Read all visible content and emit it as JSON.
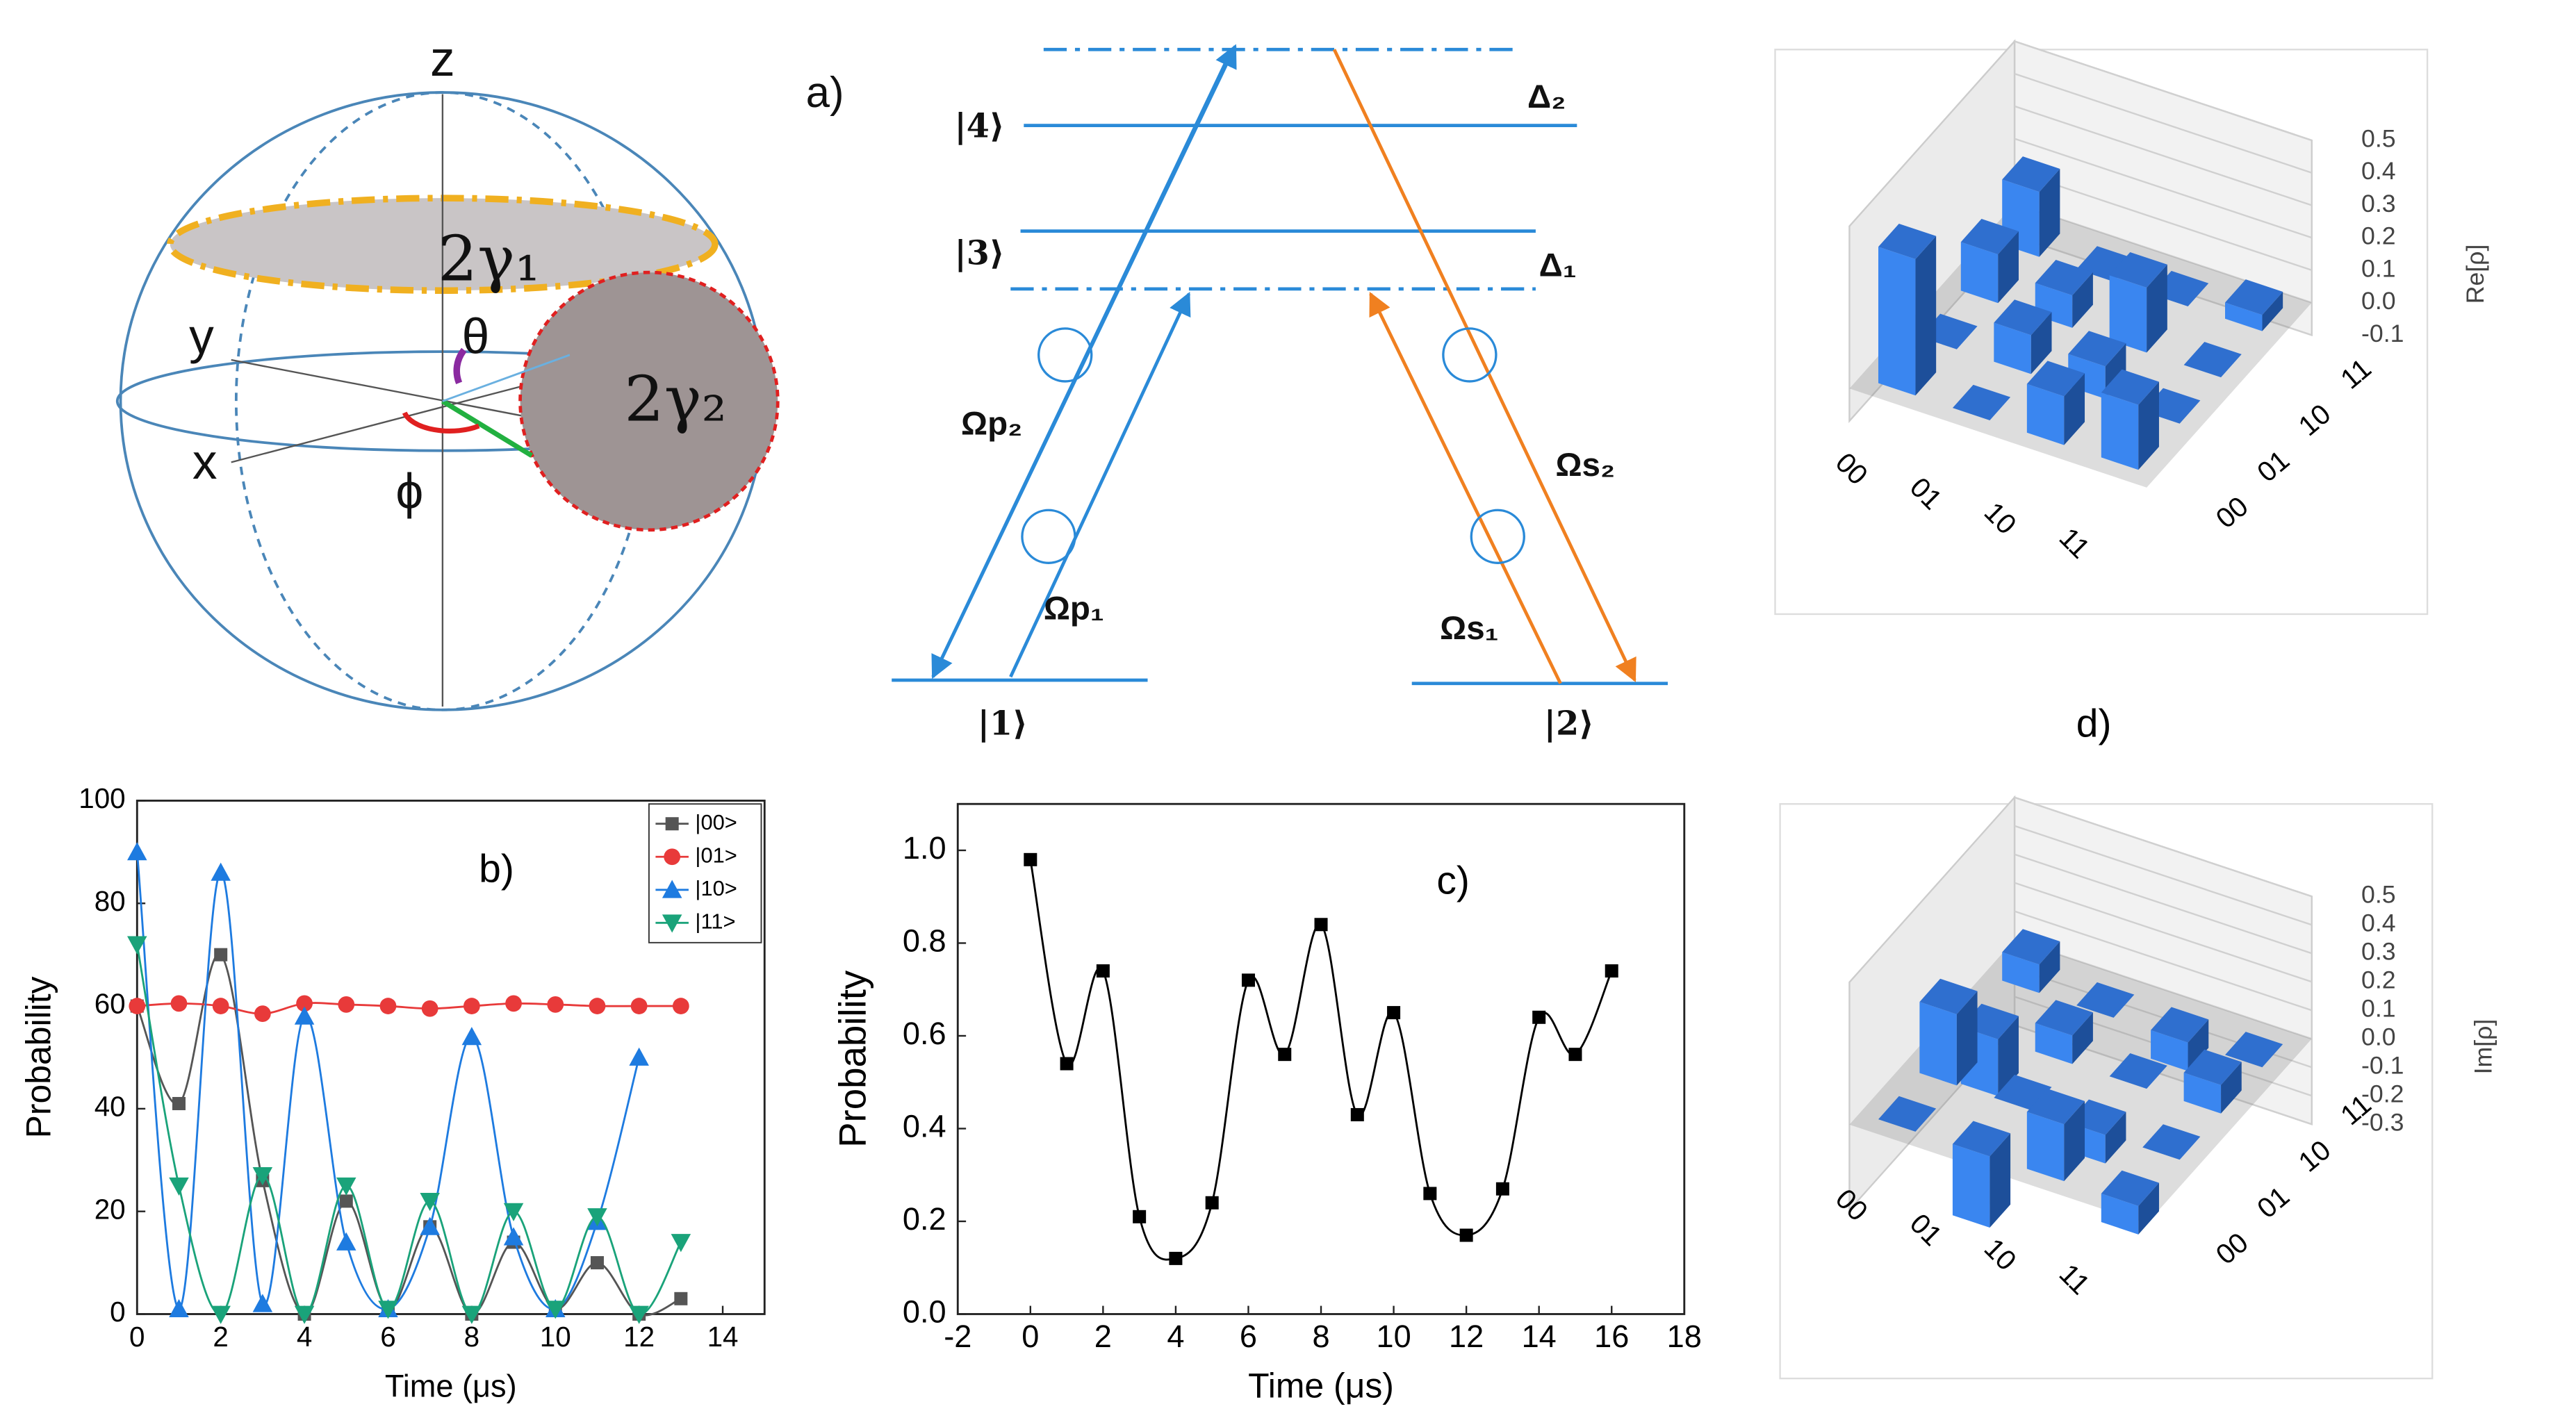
{
  "diagram": {
    "panel_label": "a)",
    "bloch": {
      "z": "z",
      "y": "y",
      "x": "x",
      "theta": "θ",
      "phi": "ϕ",
      "cap1": "2γ₁",
      "cap2": "2γ₂"
    },
    "levels": {
      "l4": "|4⟩",
      "l3": "|3⟩",
      "l1": "|1⟩",
      "l2": "|2⟩",
      "d2": "Δ₂",
      "d1": "Δ₁",
      "op2": "Ωp₂",
      "op1": "Ωp₁",
      "os2": "Ωs₂",
      "os1": "Ωs₁"
    }
  },
  "chart_data": [
    {
      "type": "line",
      "annotation": "b)",
      "x_label": "Time (μs)",
      "y_label": "Probability",
      "x": [
        0,
        1,
        2,
        3,
        4,
        5,
        6,
        7,
        8,
        9,
        10,
        11,
        12,
        13
      ],
      "series": [
        {
          "name": "|00>",
          "color": "#555555",
          "marker": "square",
          "values": [
            60,
            41,
            70,
            26,
            0,
            22,
            1,
            17,
            0,
            14,
            1,
            10,
            0,
            3
          ]
        },
        {
          "name": "|01>",
          "color": "#e83a3a",
          "marker": "circle",
          "values": [
            60,
            60.5,
            60,
            58.5,
            60.5,
            60.3,
            60,
            59.5,
            60,
            60.5,
            60.3,
            60,
            60,
            60
          ]
        },
        {
          "name": "|10>",
          "color": "#1e7be0",
          "marker": "triangle-up",
          "values": [
            90,
            1,
            86,
            2,
            58,
            14,
            1,
            17,
            54,
            15,
            1,
            18,
            50,
            null
          ]
        },
        {
          "name": "|11>",
          "color": "#1aa37a",
          "marker": "triangle-down",
          "values": [
            72,
            25,
            0,
            27,
            0,
            25,
            1,
            22,
            0,
            20,
            1,
            19,
            0,
            14
          ]
        }
      ],
      "xlim": [
        0,
        15
      ],
      "xticks": [
        0,
        2,
        4,
        6,
        8,
        10,
        12,
        14
      ],
      "ylim": [
        0,
        100
      ],
      "yticks": [
        0,
        20,
        40,
        60,
        80,
        100
      ],
      "legend": "upper right"
    },
    {
      "type": "line",
      "annotation": "c)",
      "x_label": "Time (μs)",
      "y_label": "Probability",
      "x": [
        0,
        1,
        2,
        3,
        4,
        5,
        6,
        7,
        8,
        9,
        10,
        11,
        12,
        13,
        14,
        15,
        16
      ],
      "series": [
        {
          "color": "#000000",
          "marker": "square",
          "values": [
            0.98,
            0.54,
            0.74,
            0.21,
            0.12,
            0.24,
            0.72,
            0.56,
            0.84,
            0.43,
            0.65,
            0.26,
            0.17,
            0.27,
            0.64,
            0.56,
            0.74
          ]
        }
      ],
      "xlim": [
        -2,
        18
      ],
      "xticks": [
        -2,
        0,
        2,
        4,
        6,
        8,
        10,
        12,
        14,
        16,
        18
      ],
      "ylim": [
        0,
        1.1
      ],
      "yticks": [
        {
          "value": 0,
          "label": "0.0"
        },
        0.2,
        0.4,
        0.6,
        0.8,
        {
          "value": 1,
          "label": "1.0"
        }
      ]
    },
    {
      "type": "bar3d",
      "annotation": "d)",
      "z_label": "Re[ρ]",
      "categories": [
        "00",
        "01",
        "10",
        "11"
      ],
      "color": "#3a86f0",
      "values": [
        [
          0.42,
          0.0,
          0.15,
          0.2
        ],
        [
          0.0,
          0.12,
          0.1,
          0.0
        ],
        [
          0.15,
          0.1,
          0.2,
          0.0
        ],
        [
          0.2,
          0.0,
          0.0,
          0.05
        ]
      ],
      "zlim": [
        -0.1,
        0.5
      ],
      "zticks": [
        0.5,
        0.4,
        0.3,
        0.2,
        0.1,
        {
          "value": 0,
          "label": "0.0"
        },
        -0.1
      ]
    },
    {
      "type": "bar3d",
      "z_label": "Im[ρ]",
      "categories": [
        "00",
        "01",
        "10",
        "11"
      ],
      "color": "#3a86f0",
      "values": [
        [
          0.0,
          0.25,
          -0.2,
          0.1
        ],
        [
          -0.25,
          0.0,
          0.1,
          0.0
        ],
        [
          0.2,
          -0.1,
          0.0,
          -0.1
        ],
        [
          -0.1,
          0.0,
          0.1,
          0.0
        ]
      ],
      "zlim": [
        -0.3,
        0.5
      ],
      "zticks": [
        0.5,
        0.4,
        0.3,
        0.2,
        0.1,
        {
          "value": 0,
          "label": "0.0"
        },
        -0.1,
        -0.2,
        -0.3
      ]
    }
  ]
}
